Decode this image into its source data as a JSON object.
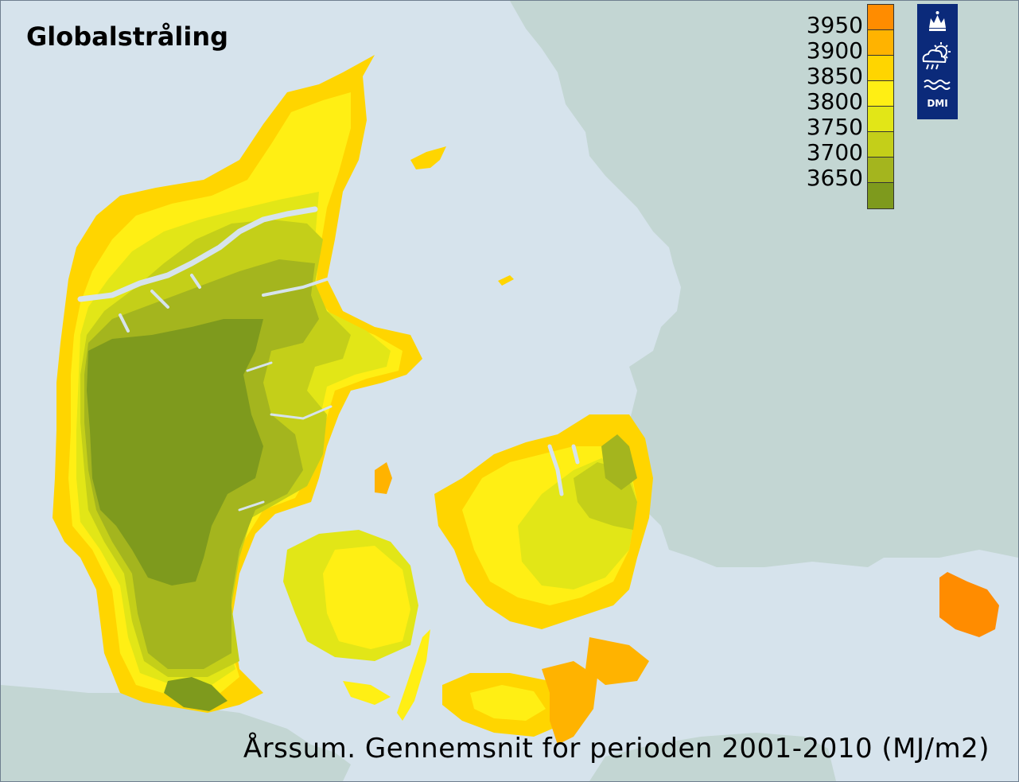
{
  "map": {
    "title": "Globalstråling",
    "caption": "Årssum. Gennemsnit for perioden 2001-2010 (MJ/m2)",
    "colors": {
      "sea": "#d6e3ec",
      "foreign_land": "#c3d6d3",
      "frame_border": "#6f7f8f"
    }
  },
  "legend": {
    "items": [
      {
        "label": "3950",
        "color": "#ff8c00"
      },
      {
        "label": "3900",
        "color": "#ffb300"
      },
      {
        "label": "3850",
        "color": "#ffd500"
      },
      {
        "label": "3800",
        "color": "#ffef14"
      },
      {
        "label": "3750",
        "color": "#e2e617"
      },
      {
        "label": "3700",
        "color": "#c4cf19"
      },
      {
        "label": "3650",
        "color": "#a4b51e"
      },
      {
        "label": "",
        "color": "#7e9a1d"
      }
    ]
  },
  "logo": {
    "text": "DMI",
    "background": "#0b2a7a",
    "icon": "dmi-crown-sun-cloud-waves-icon"
  }
}
